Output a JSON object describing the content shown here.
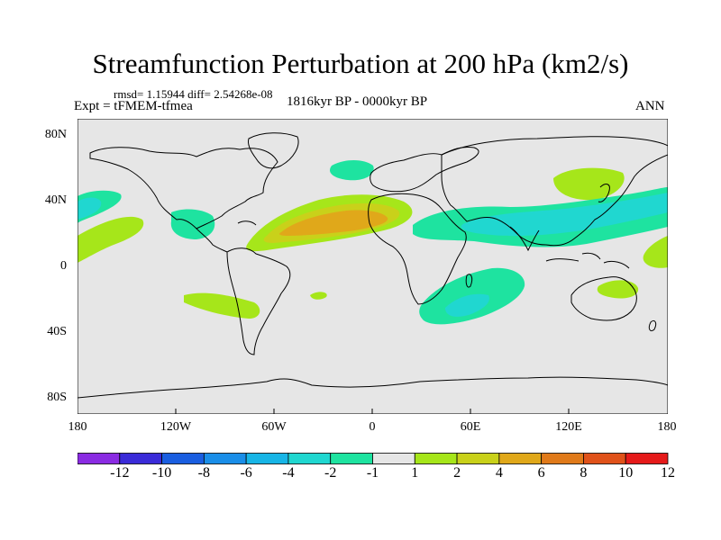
{
  "figure": {
    "title": "Streamfunction Perturbation at 200 hPa (km2/s)",
    "stats": "rmsd= 1.15944 diff= 2.54268e-08",
    "experiment": "Expt = tFMEM-tfmea",
    "period": "1816kyr BP - 0000kyr BP",
    "season": "ANN"
  },
  "axes": {
    "lat_labels": [
      "80N",
      "40N",
      "0",
      "40S",
      "80S"
    ],
    "lon_labels": [
      "180",
      "120W",
      "60W",
      "0",
      "60E",
      "120E",
      "180"
    ]
  },
  "colorbar": {
    "labels": [
      "-12",
      "-10",
      "-8",
      "-6",
      "-4",
      "-2",
      "-1",
      "1",
      "2",
      "4",
      "6",
      "8",
      "10",
      "12"
    ],
    "colors": [
      "#8a2be2",
      "#3a2bd8",
      "#1a5ee0",
      "#1a8ee8",
      "#17b5e6",
      "#20d7d0",
      "#1ee3a0",
      "#e6e6e6",
      "#a6e61a",
      "#c9d11a",
      "#e0a81a",
      "#e07a1a",
      "#e0521a",
      "#e51a1a"
    ]
  },
  "map_data": {
    "type": "contour-fill-map",
    "lon_range": [
      -180,
      180
    ],
    "lat_range": [
      -90,
      90
    ],
    "unit": "km2/s",
    "features": [
      {
        "name": "north-atlantic-high",
        "center": [
          -20,
          25
        ],
        "level": 6
      },
      {
        "name": "north-atlantic-core",
        "center": [
          -20,
          25
        ],
        "level": 4
      },
      {
        "name": "north-atlantic-outer",
        "center": [
          -25,
          22
        ],
        "level": 2
      },
      {
        "name": "asia-pacific-trough",
        "center": [
          100,
          30
        ],
        "level": -2
      },
      {
        "name": "asia-pacific-trough-outer",
        "center": [
          90,
          32
        ],
        "level": -1
      },
      {
        "name": "south-indian-trough",
        "center": [
          55,
          -25
        ],
        "level": -2
      },
      {
        "name": "south-indian-trough-outer",
        "center": [
          60,
          -20
        ],
        "level": -1
      },
      {
        "name": "east-pacific-trough",
        "center": [
          -170,
          35
        ],
        "level": -2
      },
      {
        "name": "east-pacific-trough-outer",
        "center": [
          -170,
          38
        ],
        "level": -1
      },
      {
        "name": "gulf-mexico-trough",
        "center": [
          -103,
          25
        ],
        "level": -1
      },
      {
        "name": "europe-trough",
        "center": [
          -15,
          55
        ],
        "level": -1
      },
      {
        "name": "east-asia-ridge",
        "center": [
          125,
          50
        ],
        "level": 1
      },
      {
        "name": "central-pacific-ridge",
        "center": [
          -160,
          15
        ],
        "level": 1
      },
      {
        "name": "south-pacific-ridge",
        "center": [
          -95,
          -25
        ],
        "level": 1
      },
      {
        "name": "australia-ridge",
        "center": [
          150,
          -15
        ],
        "level": 1
      },
      {
        "name": "south-atlantic-ridge",
        "center": [
          -30,
          -18
        ],
        "level": 1
      }
    ]
  }
}
